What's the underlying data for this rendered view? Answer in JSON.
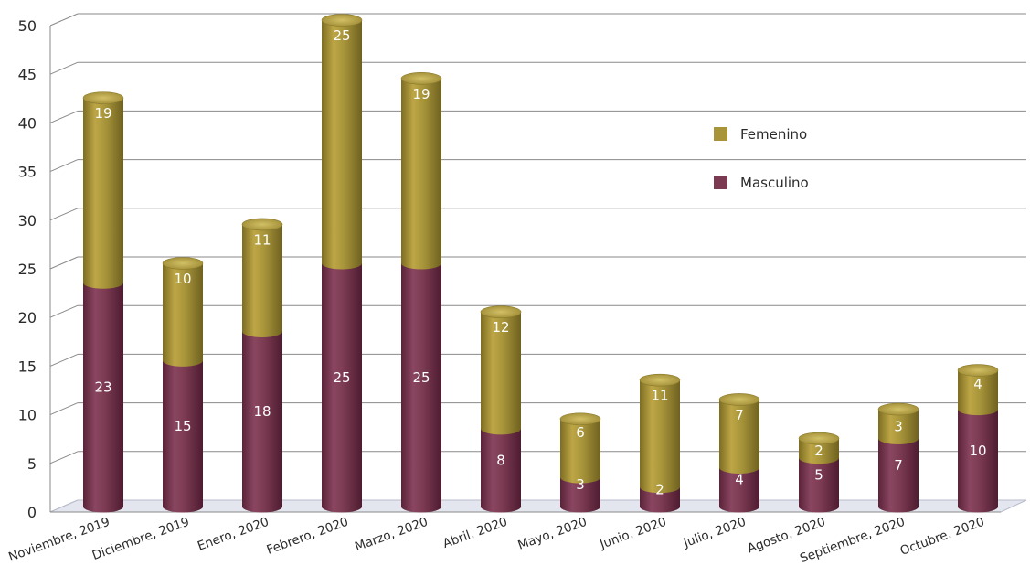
{
  "chart_data": {
    "type": "bar",
    "stacked": true,
    "categories": [
      "Noviembre, 2019",
      "Diciembre, 2019",
      "Enero, 2020",
      "Febrero, 2020",
      "Marzo, 2020",
      "Abril, 2020",
      "Mayo, 2020",
      "Junio, 2020",
      "Julio, 2020",
      "Agosto, 2020",
      "Septiembre, 2020",
      "Octubre, 2020"
    ],
    "series": [
      {
        "name": "Masculino",
        "color": "#7b3a52",
        "values": [
          23,
          15,
          18,
          25,
          25,
          8,
          3,
          2,
          4,
          5,
          7,
          10
        ]
      },
      {
        "name": "Femenino",
        "color": "#a8953a",
        "values": [
          19,
          10,
          11,
          25,
          19,
          12,
          6,
          11,
          7,
          2,
          3,
          4
        ]
      }
    ],
    "ylim": [
      0,
      50
    ],
    "yticks": [
      0,
      5,
      10,
      15,
      20,
      25,
      30,
      35,
      40,
      45,
      50
    ],
    "grid": true,
    "legend_position": "top-right",
    "legend_order": [
      "Femenino",
      "Masculino"
    ]
  }
}
